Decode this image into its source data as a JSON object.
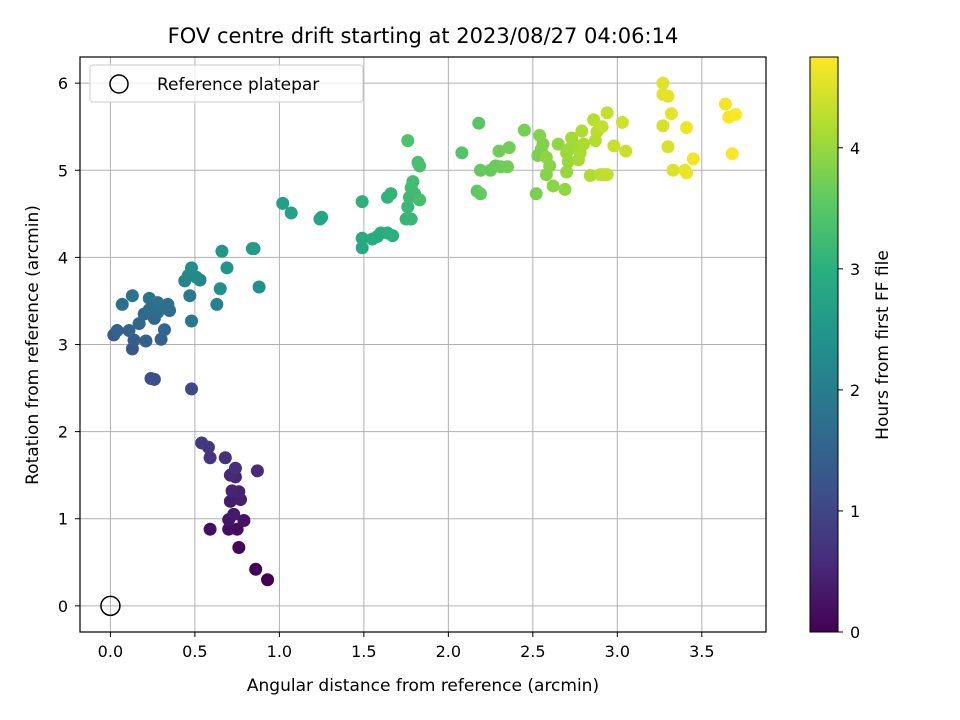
{
  "chart_data": {
    "type": "scatter",
    "title": "FOV centre drift starting at 2023/08/27 04:06:14",
    "xlabel": "Angular distance from reference (arcmin)",
    "ylabel": "Rotation from reference (arcmin)",
    "xlim": [
      -0.18,
      3.88
    ],
    "ylim": [
      -0.3,
      6.3
    ],
    "xticks": [
      "0.0",
      "0.5",
      "1.0",
      "1.5",
      "2.0",
      "2.5",
      "3.0",
      "3.5"
    ],
    "yticks": [
      "0",
      "1",
      "2",
      "3",
      "4",
      "5",
      "6"
    ],
    "grid": true,
    "legend": {
      "position": "top-left",
      "entries": [
        "Reference platepar"
      ]
    },
    "reference_point": {
      "name": "Reference platepar",
      "x": 0.0,
      "y": 0.0,
      "marker": "open-circle"
    },
    "colorbar": {
      "label": "Hours from first FF file",
      "colormap": "viridis",
      "range": [
        0,
        4.75
      ],
      "ticks": [
        "0",
        "1",
        "2",
        "3",
        "4"
      ]
    },
    "points": [
      [
        0.93,
        0.3,
        0.0
      ],
      [
        0.86,
        0.42,
        0.05
      ],
      [
        0.76,
        0.67,
        0.1
      ],
      [
        0.75,
        0.88,
        0.15
      ],
      [
        0.7,
        0.88,
        0.18
      ],
      [
        0.59,
        0.88,
        0.2
      ],
      [
        0.79,
        0.98,
        0.25
      ],
      [
        0.7,
        0.99,
        0.28
      ],
      [
        0.73,
        1.05,
        0.32
      ],
      [
        0.71,
        1.2,
        0.36
      ],
      [
        0.77,
        1.22,
        0.4
      ],
      [
        0.76,
        1.31,
        0.44
      ],
      [
        0.72,
        1.32,
        0.48
      ],
      [
        0.74,
        1.48,
        0.52
      ],
      [
        0.71,
        1.5,
        0.56
      ],
      [
        0.87,
        1.55,
        0.58
      ],
      [
        0.74,
        1.58,
        0.62
      ],
      [
        0.68,
        1.7,
        0.66
      ],
      [
        0.59,
        1.7,
        0.7
      ],
      [
        0.58,
        1.82,
        0.74
      ],
      [
        0.54,
        1.87,
        0.78
      ],
      [
        0.48,
        2.49,
        1.05
      ],
      [
        0.26,
        2.6,
        1.12
      ],
      [
        0.24,
        2.61,
        1.15
      ],
      [
        0.13,
        2.95,
        1.3
      ],
      [
        0.02,
        3.11,
        1.35
      ],
      [
        0.14,
        3.05,
        1.4
      ],
      [
        0.21,
        3.04,
        1.45
      ],
      [
        0.3,
        3.06,
        1.5
      ],
      [
        0.04,
        3.16,
        1.48
      ],
      [
        0.11,
        3.16,
        1.52
      ],
      [
        0.32,
        3.17,
        1.55
      ],
      [
        0.17,
        3.24,
        1.58
      ],
      [
        0.26,
        3.3,
        1.6
      ],
      [
        0.2,
        3.35,
        1.62
      ],
      [
        0.28,
        3.37,
        1.64
      ],
      [
        0.35,
        3.39,
        1.66
      ],
      [
        0.23,
        3.4,
        1.68
      ],
      [
        0.31,
        3.42,
        1.7
      ],
      [
        0.34,
        3.46,
        1.72
      ],
      [
        0.07,
        3.46,
        1.74
      ],
      [
        0.28,
        3.48,
        1.76
      ],
      [
        0.23,
        3.53,
        1.78
      ],
      [
        0.13,
        3.56,
        1.8
      ],
      [
        0.48,
        3.27,
        1.85
      ],
      [
        0.47,
        3.56,
        1.9
      ],
      [
        0.63,
        3.46,
        2.05
      ],
      [
        0.53,
        3.74,
        2.1
      ],
      [
        0.44,
        3.73,
        2.15
      ],
      [
        0.46,
        3.79,
        2.2
      ],
      [
        0.51,
        3.77,
        2.25
      ],
      [
        0.48,
        3.88,
        2.3
      ],
      [
        0.65,
        3.64,
        2.35
      ],
      [
        0.88,
        3.66,
        2.4
      ],
      [
        0.69,
        3.88,
        2.45
      ],
      [
        0.66,
        4.07,
        2.5
      ],
      [
        0.84,
        4.1,
        2.55
      ],
      [
        0.85,
        4.1,
        2.58
      ],
      [
        1.02,
        4.62,
        2.65
      ],
      [
        1.07,
        4.51,
        2.7
      ],
      [
        1.24,
        4.44,
        2.75
      ],
      [
        1.25,
        4.46,
        2.78
      ],
      [
        1.49,
        4.11,
        2.85
      ],
      [
        1.49,
        4.22,
        2.88
      ],
      [
        1.55,
        4.21,
        2.9
      ],
      [
        1.58,
        4.24,
        2.92
      ],
      [
        1.6,
        4.28,
        2.95
      ],
      [
        1.64,
        4.28,
        2.97
      ],
      [
        1.67,
        4.25,
        3.0
      ],
      [
        1.49,
        4.64,
        3.02
      ],
      [
        1.64,
        4.69,
        3.05
      ],
      [
        1.66,
        4.73,
        3.08
      ],
      [
        1.75,
        4.44,
        3.12
      ],
      [
        1.78,
        4.44,
        3.15
      ],
      [
        1.76,
        4.58,
        3.18
      ],
      [
        1.77,
        4.69,
        3.2
      ],
      [
        1.8,
        4.73,
        3.22
      ],
      [
        1.78,
        4.8,
        3.25
      ],
      [
        1.79,
        4.87,
        3.28
      ],
      [
        1.83,
        4.66,
        3.3
      ],
      [
        1.82,
        5.09,
        3.32
      ],
      [
        1.83,
        5.05,
        3.34
      ],
      [
        1.76,
        5.34,
        3.38
      ],
      [
        2.08,
        5.2,
        3.45
      ],
      [
        2.17,
        4.76,
        3.55
      ],
      [
        2.19,
        4.73,
        3.58
      ],
      [
        2.19,
        5.0,
        3.6
      ],
      [
        2.25,
        5.0,
        3.62
      ],
      [
        2.28,
        5.05,
        3.64
      ],
      [
        2.31,
        5.04,
        3.66
      ],
      [
        2.3,
        5.22,
        3.68
      ],
      [
        2.35,
        5.04,
        3.7
      ],
      [
        2.36,
        5.26,
        3.72
      ],
      [
        2.18,
        5.54,
        3.5
      ],
      [
        2.45,
        5.46,
        3.74
      ],
      [
        2.52,
        4.73,
        3.76
      ],
      [
        2.53,
        5.17,
        3.78
      ],
      [
        2.55,
        5.24,
        3.8
      ],
      [
        2.56,
        5.3,
        3.82
      ],
      [
        2.54,
        5.4,
        3.84
      ],
      [
        2.58,
        4.95,
        3.86
      ],
      [
        2.6,
        5.05,
        3.88
      ],
      [
        2.62,
        4.82,
        3.9
      ],
      [
        2.58,
        5.15,
        3.92
      ],
      [
        2.65,
        5.3,
        3.94
      ],
      [
        2.69,
        4.78,
        3.96
      ],
      [
        2.7,
        4.98,
        3.98
      ],
      [
        2.71,
        5.1,
        4.0
      ],
      [
        2.7,
        5.2,
        4.02
      ],
      [
        2.72,
        5.25,
        4.04
      ],
      [
        2.74,
        5.3,
        4.06
      ],
      [
        2.73,
        5.37,
        4.08
      ],
      [
        2.77,
        5.12,
        4.1
      ],
      [
        2.78,
        5.2,
        4.12
      ],
      [
        2.8,
        5.3,
        4.14
      ],
      [
        2.79,
        5.45,
        4.16
      ],
      [
        2.84,
        4.94,
        4.18
      ],
      [
        2.87,
        5.34,
        4.2
      ],
      [
        2.88,
        5.44,
        4.22
      ],
      [
        2.86,
        5.58,
        4.24
      ],
      [
        2.9,
        4.95,
        4.26
      ],
      [
        2.92,
        4.95,
        4.28
      ],
      [
        2.94,
        4.95,
        4.3
      ],
      [
        2.91,
        5.5,
        4.32
      ],
      [
        2.94,
        5.66,
        4.34
      ],
      [
        2.98,
        5.28,
        4.36
      ],
      [
        3.05,
        5.22,
        4.38
      ],
      [
        3.03,
        5.55,
        4.4
      ],
      [
        3.27,
        5.51,
        4.45
      ],
      [
        3.3,
        5.27,
        4.48
      ],
      [
        3.33,
        5.0,
        4.5
      ],
      [
        3.27,
        5.87,
        4.52
      ],
      [
        3.27,
        6.0,
        4.54
      ],
      [
        3.3,
        5.85,
        4.56
      ],
      [
        3.32,
        5.65,
        4.58
      ],
      [
        3.4,
        5.0,
        4.6
      ],
      [
        3.41,
        4.97,
        4.62
      ],
      [
        3.41,
        5.49,
        4.64
      ],
      [
        3.45,
        5.13,
        4.66
      ],
      [
        3.64,
        5.76,
        4.68
      ],
      [
        3.66,
        5.61,
        4.7
      ],
      [
        3.68,
        5.19,
        4.72
      ],
      [
        3.7,
        5.64,
        4.74
      ]
    ]
  }
}
